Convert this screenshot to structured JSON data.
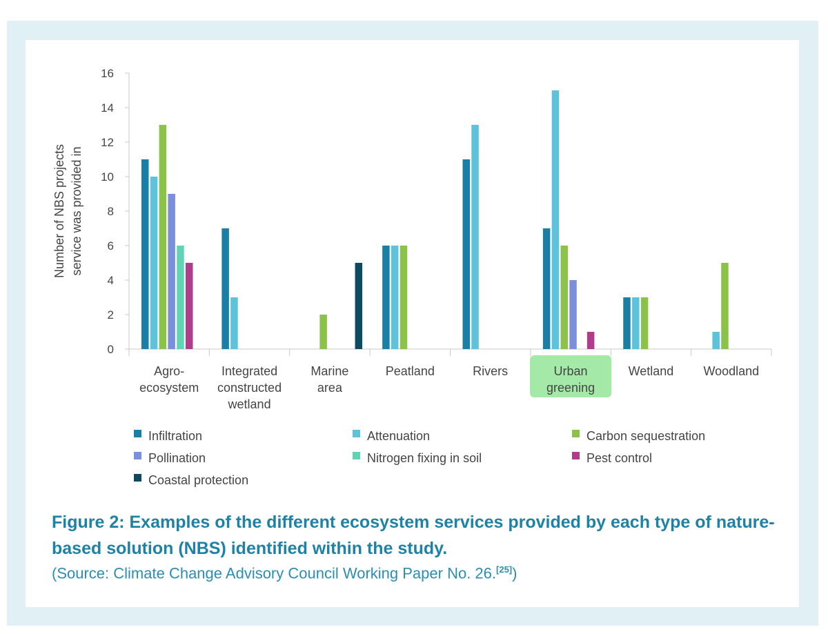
{
  "chart_data": {
    "type": "bar",
    "title": "",
    "xlabel": "",
    "ylabel": "Number of NBS projects service was provided in",
    "ylim": [
      0,
      16
    ],
    "yticks": [
      0,
      2,
      4,
      6,
      8,
      10,
      12,
      14,
      16
    ],
    "categories": [
      [
        "Agro-",
        "ecosystem"
      ],
      [
        "Integrated",
        "constructed",
        "wetland"
      ],
      [
        "Marine",
        "area"
      ],
      [
        "Peatland"
      ],
      [
        "Rivers"
      ],
      [
        "Urban",
        "greening"
      ],
      [
        "Wetland"
      ],
      [
        "Woodland"
      ]
    ],
    "highlighted_category": 5,
    "highlight_color": "#a5e9a8",
    "series": [
      {
        "name": "Infiltration",
        "color": "#1a7fa6",
        "values": [
          11,
          7,
          0,
          6,
          11,
          7,
          3,
          0
        ]
      },
      {
        "name": "Attenuation",
        "color": "#5fc2db",
        "values": [
          10,
          3,
          0,
          6,
          13,
          15,
          3,
          1
        ]
      },
      {
        "name": "Carbon sequestration",
        "color": "#8bc34a",
        "values": [
          13,
          0,
          2,
          6,
          0,
          6,
          3,
          5
        ]
      },
      {
        "name": "Pollination",
        "color": "#7b8fdb",
        "values": [
          9,
          0,
          0,
          0,
          0,
          4,
          0,
          0
        ]
      },
      {
        "name": "Nitrogen fixing in soil",
        "color": "#5fd3b4",
        "values": [
          6,
          0,
          0,
          0,
          0,
          0,
          0,
          0
        ]
      },
      {
        "name": "Pest control",
        "color": "#b03c8c",
        "values": [
          5,
          0,
          0,
          0,
          0,
          1,
          0,
          0
        ]
      },
      {
        "name": "Coastal protection",
        "color": "#0c4a60",
        "values": [
          0,
          0,
          5,
          0,
          0,
          0,
          0,
          0
        ]
      }
    ],
    "ylabel_lines": [
      "Number of NBS projects",
      "service was provided in"
    ]
  },
  "caption": {
    "title": "Figure 2: Examples of the different ecosystem services provided by each type of nature-based solution (NBS) identified within the study.",
    "source_text": "(Source: Climate Change Advisory Council Working Paper No. 26.",
    "source_ref": "[25]",
    "source_close": ")"
  },
  "colors": {
    "frame": "#e1f0f5",
    "axis": "#c8c8c8",
    "text": "#444444",
    "caption": "#1d82a6"
  }
}
